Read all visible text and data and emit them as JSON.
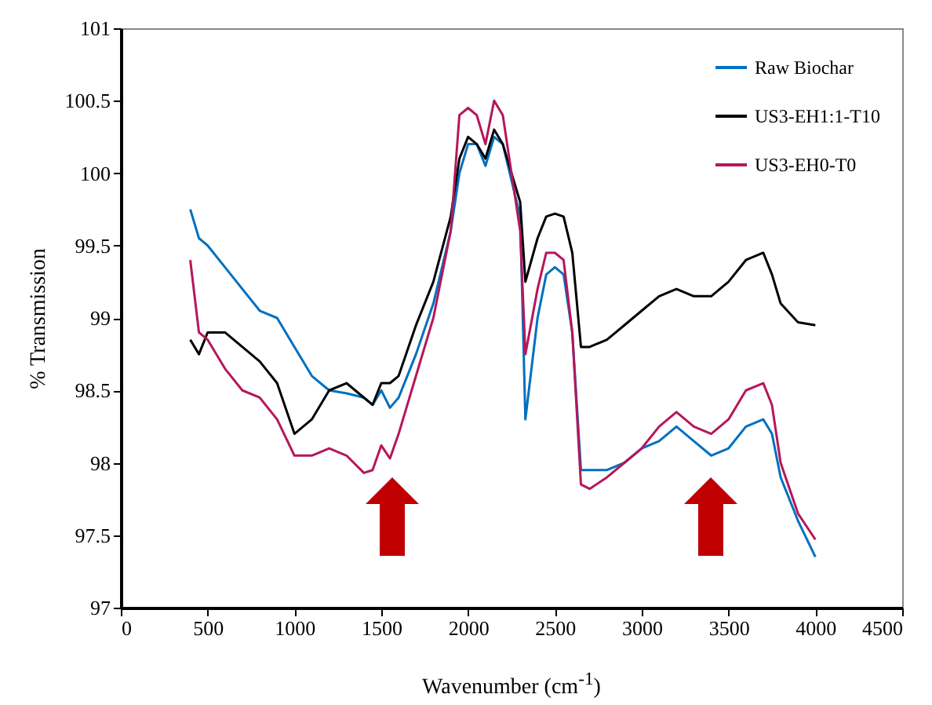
{
  "chart_data": {
    "type": "line",
    "xlabel": "Wavenumber (cm$^{-1}$)",
    "ylabel": "% Transmission",
    "xlim": [
      0,
      4500
    ],
    "xticks": [
      0,
      500,
      1000,
      1500,
      2000,
      2500,
      3000,
      3500,
      4000,
      4500
    ],
    "ylim": [
      97,
      101
    ],
    "yticks": [
      97,
      97.5,
      98,
      98.5,
      99,
      99.5,
      100,
      100.5,
      101
    ],
    "grid": false,
    "legend": "top right",
    "marker": "none",
    "line_style": "solid",
    "x": [
      400,
      450,
      500,
      600,
      700,
      800,
      900,
      1000,
      1100,
      1200,
      1300,
      1400,
      1450,
      1500,
      1550,
      1600,
      1700,
      1800,
      1900,
      1950,
      2000,
      2050,
      2100,
      2150,
      2200,
      2300,
      2330,
      2400,
      2450,
      2500,
      2550,
      2600,
      2650,
      2700,
      2800,
      2900,
      3000,
      3100,
      3200,
      3300,
      3400,
      3500,
      3600,
      3700,
      3750,
      3800,
      3900,
      4000
    ],
    "series": [
      {
        "name": "Raw Biochar",
        "color": "#0070c0",
        "values": [
          99.75,
          99.55,
          99.5,
          99.35,
          99.2,
          99.05,
          99.0,
          98.8,
          98.6,
          98.5,
          98.48,
          98.45,
          98.4,
          98.5,
          98.38,
          98.45,
          98.75,
          99.1,
          99.6,
          100.0,
          100.2,
          100.2,
          100.05,
          100.25,
          100.2,
          99.7,
          98.3,
          99.0,
          99.3,
          99.35,
          99.3,
          98.9,
          97.95,
          97.95,
          97.95,
          98.0,
          98.1,
          98.15,
          98.25,
          98.15,
          98.05,
          98.1,
          98.25,
          98.3,
          98.2,
          97.9,
          97.6,
          97.35
        ]
      },
      {
        "name": "US3-EH1:1-T10",
        "color": "#000000",
        "values": [
          98.85,
          98.75,
          98.9,
          98.9,
          98.8,
          98.7,
          98.55,
          98.2,
          98.3,
          98.5,
          98.55,
          98.45,
          98.4,
          98.55,
          98.55,
          98.6,
          98.95,
          99.25,
          99.7,
          100.1,
          100.25,
          100.2,
          100.1,
          100.3,
          100.2,
          99.8,
          99.25,
          99.55,
          99.7,
          99.72,
          99.7,
          99.45,
          98.8,
          98.8,
          98.85,
          98.95,
          99.05,
          99.15,
          99.2,
          99.15,
          99.15,
          99.25,
          99.4,
          99.45,
          99.3,
          99.1,
          98.97,
          98.95
        ]
      },
      {
        "name": "US3-EH0-T0",
        "color": "#b5175b",
        "values": [
          99.4,
          98.9,
          98.85,
          98.65,
          98.5,
          98.45,
          98.3,
          98.05,
          98.05,
          98.1,
          98.05,
          97.93,
          97.95,
          98.12,
          98.03,
          98.2,
          98.6,
          99.0,
          99.6,
          100.4,
          100.45,
          100.4,
          100.2,
          100.5,
          100.4,
          99.6,
          98.75,
          99.2,
          99.45,
          99.45,
          99.4,
          98.9,
          97.85,
          97.82,
          97.9,
          98.0,
          98.1,
          98.25,
          98.35,
          98.25,
          98.2,
          98.3,
          98.5,
          98.55,
          98.4,
          98.0,
          97.65,
          97.47
        ]
      }
    ]
  }
}
